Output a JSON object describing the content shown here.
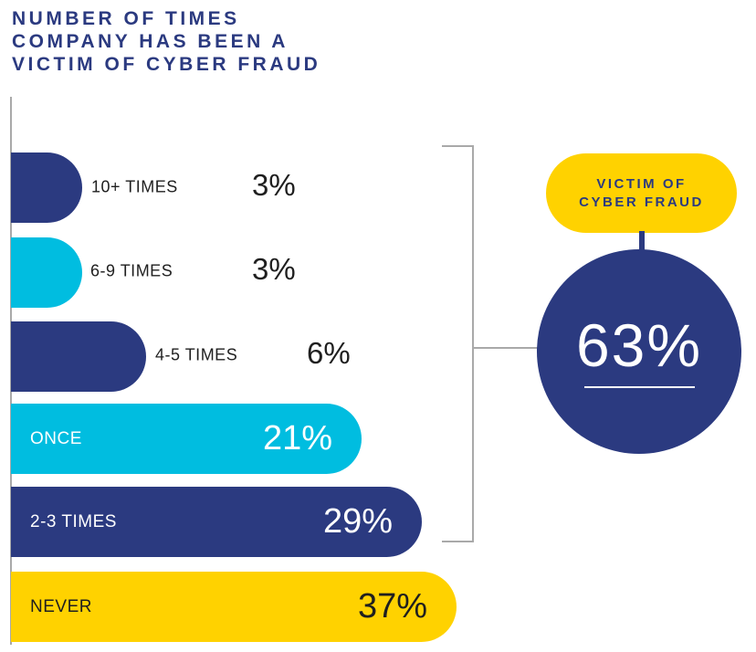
{
  "title": {
    "line1": "NUMBER OF TIMES",
    "line2": "COMPANY HAS BEEN A",
    "line3": "VICTIM OF CYBER FRAUD"
  },
  "colors": {
    "navy": "#2B3A80",
    "cyan": "#00BDE0",
    "yellow": "#FFD200",
    "bracket_gray": "#A9A9A9",
    "text_dark": "#1F1F1F",
    "white": "#FFFFFF"
  },
  "bars": [
    {
      "label": "10+ TIMES",
      "value": "3%"
    },
    {
      "label": "6-9 TIMES",
      "value": "3%"
    },
    {
      "label": "4-5 TIMES",
      "value": "6%"
    },
    {
      "label": "ONCE",
      "value": "21%"
    },
    {
      "label": "2-3 TIMES",
      "value": "29%"
    },
    {
      "label": "NEVER",
      "value": "37%"
    }
  ],
  "callout": {
    "badge_line1": "VICTIM OF",
    "badge_line2": "CYBER FRAUD",
    "value": "63%"
  },
  "chart_data": {
    "type": "bar",
    "orientation": "horizontal",
    "title": "NUMBER OF TIMES COMPANY HAS BEEN A VICTIM OF CYBER FRAUD",
    "categories": [
      "10+ TIMES",
      "6-9 TIMES",
      "4-5 TIMES",
      "ONCE",
      "2-3 TIMES",
      "NEVER"
    ],
    "values": [
      3,
      3,
      6,
      21,
      29,
      37
    ],
    "unit": "%",
    "bar_colors": [
      "#2B3A80",
      "#00BDE0",
      "#2B3A80",
      "#00BDE0",
      "#2B3A80",
      "#FFD200"
    ],
    "value_label_placement": [
      "outside",
      "outside",
      "outside",
      "inside",
      "inside",
      "inside"
    ],
    "xlabel": "",
    "ylabel": "",
    "grid": false,
    "legend": "none",
    "axis_style": "single vertical baseline on left, no ticks",
    "annotation": {
      "label": "VICTIM OF CYBER FRAUD",
      "value": 63,
      "unit": "%",
      "covers_categories": [
        "10+ TIMES",
        "6-9 TIMES",
        "4-5 TIMES",
        "ONCE",
        "2-3 TIMES"
      ],
      "shape": "bracket grouping all bars except NEVER, linked to a circle badge"
    }
  }
}
